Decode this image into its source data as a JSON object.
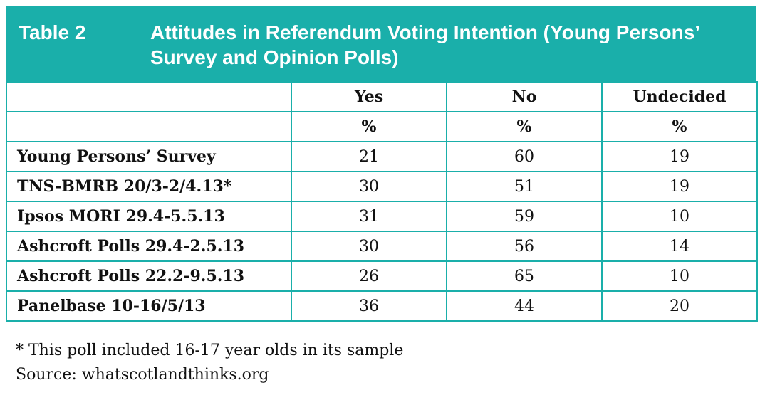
{
  "header": {
    "label": "Table 2",
    "title": "Attitudes in Referendum Voting Intention (Young Persons’ Survey and Opinion Polls)"
  },
  "table": {
    "columns": [
      "",
      "Yes",
      "No",
      "Undecided"
    ],
    "units": [
      "",
      "%",
      "%",
      "%"
    ],
    "rows": [
      {
        "label": "Young Persons’ Survey",
        "yes": "21",
        "no": "60",
        "undecided": "19"
      },
      {
        "label": "TNS-BMRB 20/3-2/4.13*",
        "yes": "30",
        "no": "51",
        "undecided": "19"
      },
      {
        "label": "Ipsos MORI 29.4-5.5.13",
        "yes": "31",
        "no": "59",
        "undecided": "10"
      },
      {
        "label": "Ashcroft Polls 29.4-2.5.13",
        "yes": "30",
        "no": "56",
        "undecided": "14"
      },
      {
        "label": "Ashcroft Polls 22.2-9.5.13",
        "yes": "26",
        "no": "65",
        "undecided": "10"
      },
      {
        "label": "Panelbase 10-16/5/13",
        "yes": "36",
        "no": "44",
        "undecided": "20"
      }
    ]
  },
  "notes": {
    "footnote": "* This poll included 16-17 year olds in its sample",
    "source": "Source: whatscotlandthinks.org"
  }
}
